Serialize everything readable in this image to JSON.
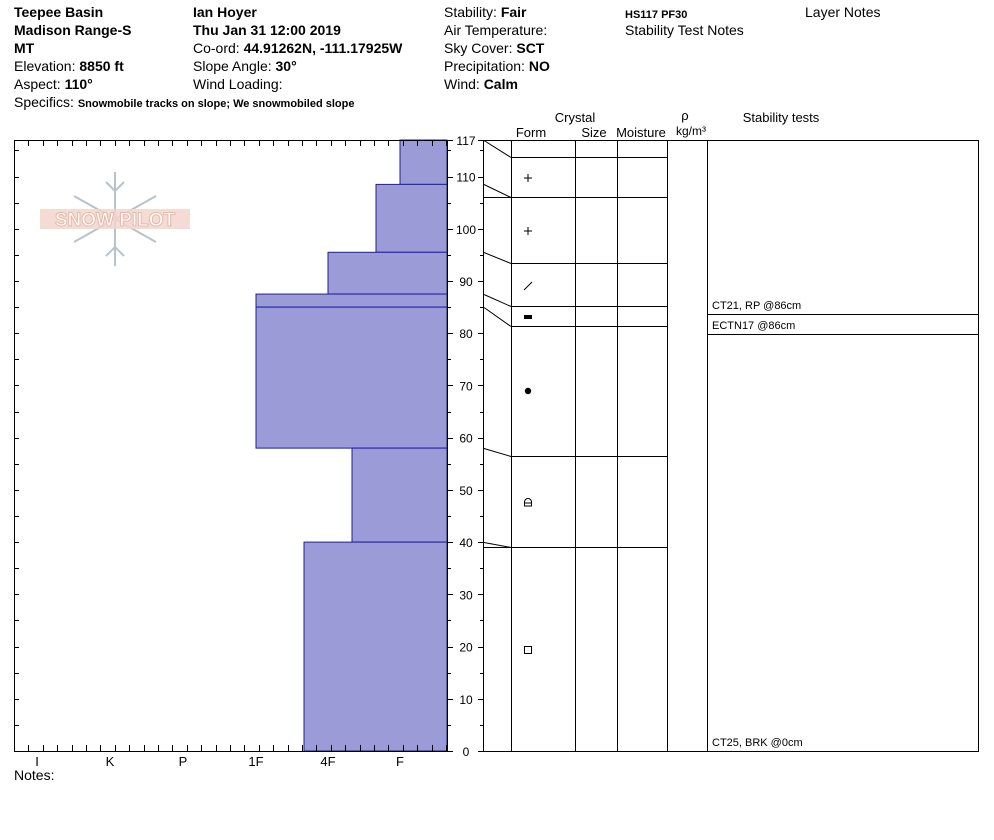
{
  "header": {
    "location": "Teepee Basin",
    "range": "Madison Range-S",
    "state": "MT",
    "elevation_label": "Elevation:",
    "elevation_value": "8850 ft",
    "aspect_label": "Aspect:",
    "aspect_value": "110°",
    "specifics_label": "Specifics:",
    "specifics_value": "Snowmobile tracks on slope; We snowmobiled slope",
    "observer": "Ian Hoyer",
    "datetime": "Thu Jan 31 12:00 2019",
    "coord_label": "Co-ord:",
    "coord_value": "44.91262N, -111.17925W",
    "slope_label": "Slope Angle:",
    "slope_value": "30°",
    "wind_loading_label": "Wind Loading:",
    "stability_label": "Stability:",
    "stability_value": "Fair",
    "air_temp_label": "Air Temperature:",
    "sky_label": "Sky Cover:",
    "sky_value": "SCT",
    "precip_label": "Precipitation:",
    "precip_value": "NO",
    "wind_label": "Wind:",
    "wind_value": "Calm",
    "hs_pf": "HS117  PF30",
    "stability_test_notes": "Stability Test Notes",
    "layer_notes": "Layer Notes"
  },
  "logo": {
    "text": "SNOW PILOT",
    "color": "#e8b8a8"
  },
  "hardness_axis": {
    "labels": [
      "I",
      "K",
      "P",
      "1F",
      "4F",
      "F"
    ]
  },
  "depth_axis": {
    "labels": [
      "117",
      "110",
      "100",
      "90",
      "80",
      "70",
      "60",
      "50",
      "40",
      "30",
      "20",
      "10",
      "0"
    ]
  },
  "columns": {
    "crystal": "Crystal",
    "form": "Form",
    "size": "Size",
    "moisture": "Moisture",
    "rho": "ρ",
    "density_unit": "kg/m³",
    "stability_tests": "Stability tests"
  },
  "chart_data": {
    "type": "bar",
    "total_depth_cm": 117,
    "fill_color": "#9b9bd7",
    "layers": [
      {
        "top": 117,
        "bottom": 108.5,
        "hardness": "F",
        "form": "plus"
      },
      {
        "top": 108.5,
        "bottom": 95.5,
        "hardness": "F+",
        "form": "plus"
      },
      {
        "top": 95.5,
        "bottom": 87.5,
        "hardness": "4F",
        "form": "slash"
      },
      {
        "top": 87.5,
        "bottom": 85,
        "hardness": "1F",
        "form": "rect"
      },
      {
        "top": 85,
        "bottom": 58,
        "hardness": "1F",
        "form": "dot"
      },
      {
        "top": 58,
        "bottom": 40,
        "hardness": "4F-",
        "form": "rounded-square"
      },
      {
        "top": 40,
        "bottom": 0,
        "hardness": "4F+",
        "form": "square"
      }
    ]
  },
  "stability_tests": [
    {
      "text": "CT21, RP @86cm"
    },
    {
      "text": "ECTN17 @86cm"
    },
    {
      "text": "CT25, BRK @0cm"
    }
  ],
  "notes_label": "Notes:"
}
